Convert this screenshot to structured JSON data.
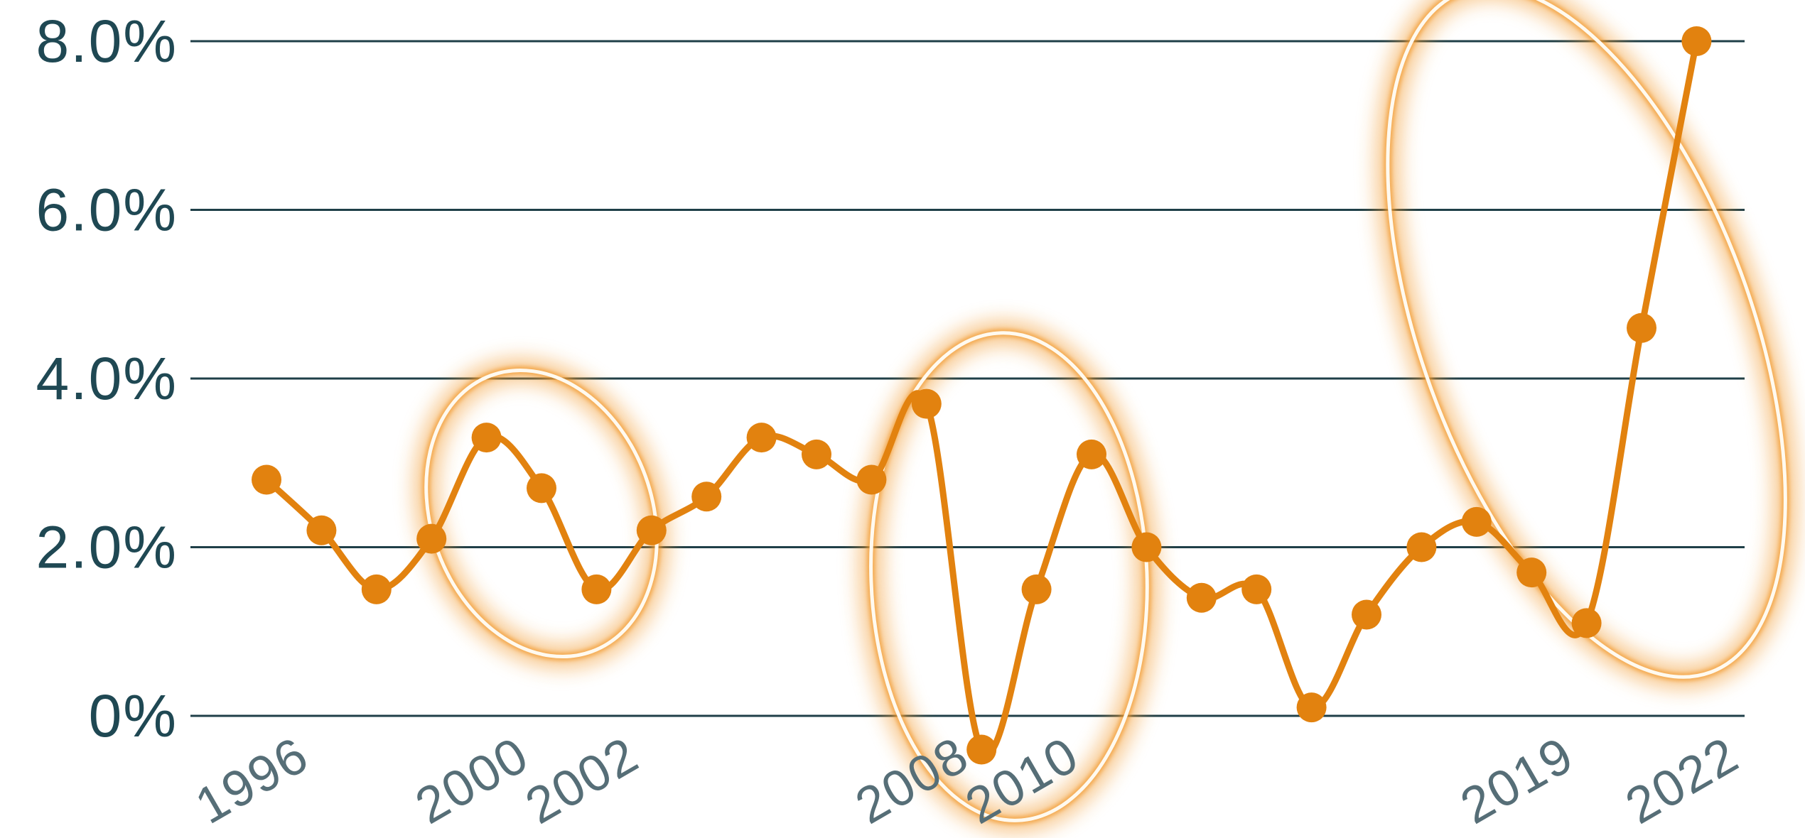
{
  "chart_data": {
    "type": "line",
    "x": [
      1996,
      1997,
      1998,
      1999,
      2000,
      2001,
      2002,
      2003,
      2004,
      2005,
      2006,
      2007,
      2008,
      2009,
      2010,
      2011,
      2012,
      2013,
      2014,
      2015,
      2016,
      2017,
      2018,
      2019,
      2020,
      2021,
      2022
    ],
    "series": [
      {
        "name": "",
        "values": [
          2.8,
          2.2,
          1.5,
          2.1,
          3.3,
          2.7,
          1.5,
          2.2,
          2.6,
          3.3,
          3.1,
          2.8,
          3.7,
          -0.4,
          1.5,
          3.1,
          2.0,
          1.4,
          1.5,
          0.1,
          1.2,
          2.0,
          2.3,
          1.7,
          1.1,
          4.6,
          8.0
        ]
      }
    ],
    "yticks": [
      {
        "value": 0,
        "label": "0%"
      },
      {
        "value": 2,
        "label": "2.0%"
      },
      {
        "value": 4,
        "label": "4.0%"
      },
      {
        "value": 6,
        "label": "6.0%"
      },
      {
        "value": 8,
        "label": "8.0%"
      }
    ],
    "xtick_labels": [
      {
        "year": 1996,
        "label": "1996"
      },
      {
        "year": 2000,
        "label": "2000"
      },
      {
        "year": 2002,
        "label": "2002"
      },
      {
        "year": 2008,
        "label": "2008"
      },
      {
        "year": 2010,
        "label": "2010"
      },
      {
        "year": 2019,
        "label": "2019"
      },
      {
        "year": 2022,
        "label": "2022"
      }
    ],
    "highlights": [
      {
        "from": 2000,
        "to": 2002
      },
      {
        "from": 2008,
        "to": 2011
      },
      {
        "from": 2018,
        "to": 2022
      }
    ],
    "ylim": [
      0,
      8
    ],
    "grid": true,
    "title": "",
    "xlabel": "",
    "ylabel": "",
    "colors": {
      "line": "#e2820f",
      "grid": "#1f3f48",
      "ytick": "#1f4853",
      "xtick": "#566e77",
      "glow": "#f29a2e"
    }
  }
}
